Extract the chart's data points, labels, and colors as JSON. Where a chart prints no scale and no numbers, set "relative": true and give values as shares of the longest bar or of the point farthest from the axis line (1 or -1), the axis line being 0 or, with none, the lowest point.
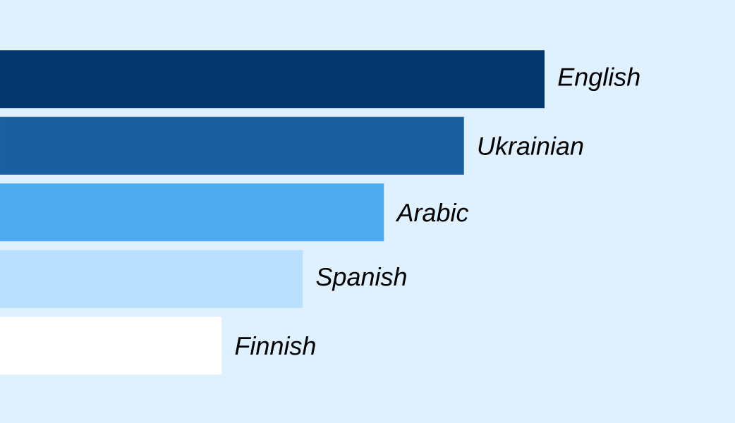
{
  "chart_data": {
    "type": "bar",
    "orientation": "horizontal",
    "relative": true,
    "categories": [
      "English",
      "Ukrainian",
      "Arabic",
      "Spanish",
      "Finnish"
    ],
    "values": [
      1,
      0.852,
      0.705,
      0.556,
      0.407
    ],
    "colors": [
      "#03376e",
      "#1a5fa0",
      "#4eabef",
      "#b9e0fd",
      "#ffffff"
    ]
  }
}
